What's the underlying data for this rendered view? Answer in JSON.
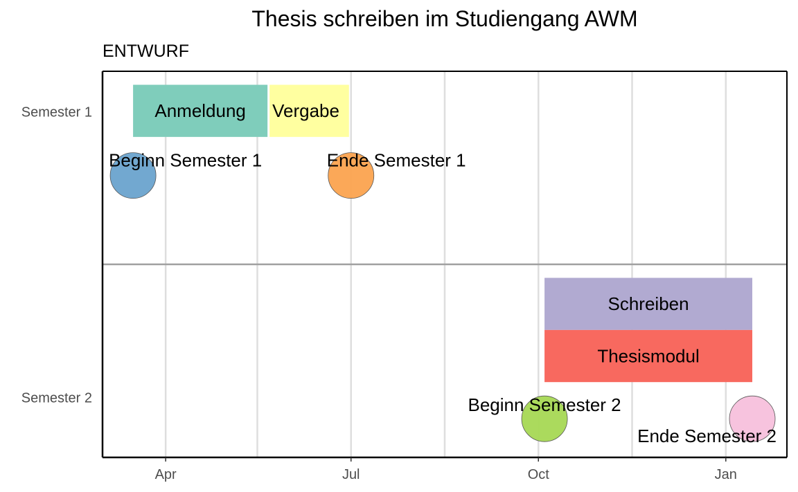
{
  "chart_data": {
    "type": "timeline",
    "title": "Thesis schreiben im Studiengang AWM",
    "subtitle": "ENTWURF",
    "x_axis": {
      "type": "date",
      "range": [
        "2024-03-01",
        "2025-01-31"
      ],
      "ticks": [
        {
          "date": "2024-04-01",
          "label": "Apr"
        },
        {
          "date": "2024-07-01",
          "label": "Jul"
        },
        {
          "date": "2024-10-01",
          "label": "Oct"
        },
        {
          "date": "2025-01-01",
          "label": "Jan"
        }
      ],
      "minor_ticks": [
        "2024-05-16",
        "2024-08-16",
        "2024-11-16"
      ]
    },
    "y_axis": {
      "categories": [
        "Semester 1",
        "Semester 2"
      ]
    },
    "grid": true,
    "bars": [
      {
        "label": "Anmeldung",
        "start": "2024-03-16",
        "end": "2024-05-21",
        "semester": "Semester 1",
        "level": "upper",
        "color": "#7fcdbb"
      },
      {
        "label": "Vergabe",
        "start": "2024-05-22",
        "end": "2024-06-30",
        "semester": "Semester 1",
        "level": "upper",
        "color": "#ffffa0"
      },
      {
        "label": "Schreiben",
        "start": "2024-10-04",
        "end": "2025-01-14",
        "semester": "Semester 2",
        "level": "upper",
        "color": "#b1aad1"
      },
      {
        "label": "Thesismodul",
        "start": "2024-10-04",
        "end": "2025-01-14",
        "semester": "Semester 2",
        "level": "lower",
        "color": "#f8695f"
      }
    ],
    "events": [
      {
        "label": "Beginn Semester 1",
        "date": "2024-03-16",
        "semester": "Semester 1",
        "color": "#6aa3cd",
        "label_position": "above-right"
      },
      {
        "label": "Ende Semester 1",
        "date": "2024-07-01",
        "semester": "Semester 1",
        "color": "#fba34f",
        "label_position": "above-right"
      },
      {
        "label": "Beginn Semester 2",
        "date": "2024-10-04",
        "semester": "Semester 2",
        "color": "#a6d854",
        "label_position": "above"
      },
      {
        "label": "Ende Semester 2",
        "date": "2025-01-14",
        "semester": "Semester 2",
        "color": "#f7c0dc",
        "label_position": "below-left"
      }
    ]
  }
}
